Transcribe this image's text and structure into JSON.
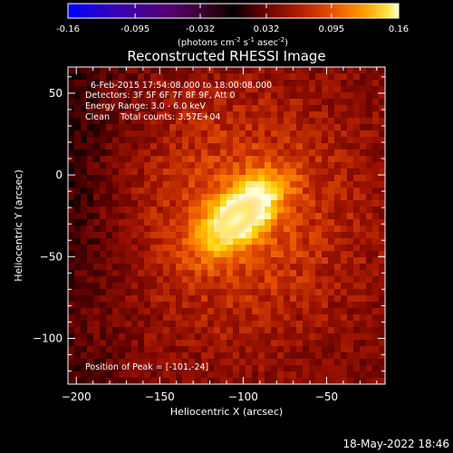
{
  "colorbar": {
    "tick_labels": [
      "-0.16",
      "-0.095",
      "-0.032",
      "0.032",
      "0.095",
      "0.16"
    ],
    "ticks": [
      -0.16,
      -0.095,
      -0.032,
      0.032,
      0.095,
      0.16
    ],
    "range": [
      -0.16,
      0.16
    ],
    "unit_label_parts": [
      "(photons cm",
      "-2",
      " s",
      "-1",
      " asec",
      "-2",
      ")"
    ]
  },
  "chart_data": {
    "type": "heatmap",
    "title": "Reconstructed RHESSI Image",
    "xlabel": "Heliocentric X (arcsec)",
    "ylabel": "Heliocentric Y (arcsec)",
    "xlim": [
      -205,
      -15
    ],
    "ylim": [
      -128,
      66
    ],
    "x_ticks": [
      -200,
      -150,
      -100,
      -50
    ],
    "x_tick_labels": [
      "−200",
      "−150",
      "−100",
      "−50"
    ],
    "y_ticks": [
      50,
      0,
      -50,
      -100
    ],
    "y_tick_labels": [
      "50",
      "0",
      "−50",
      "−100"
    ],
    "peak": {
      "x": -101,
      "y": -24,
      "value": 0.16
    },
    "annotations": [
      "6-Feb-2015 17:54:08.000 to 18:00:08.000",
      "Detectors: 3F 5F 6F 7F 8F 9F, Att 0",
      "Energy Range: 3.0 - 6.0 keV",
      "Clean    Total counts: 3.57E+04"
    ],
    "peak_label": "Position of Peak = [-101,-24]",
    "colormap": [
      "#0000ff",
      "#3a00b5",
      "#55006a",
      "#400010",
      "#000000",
      "#5c0000",
      "#a01400",
      "#e04800",
      "#ff8c00",
      "#ffd200",
      "#ffffd8"
    ]
  },
  "timestamp": "18-May-2022 18:46"
}
